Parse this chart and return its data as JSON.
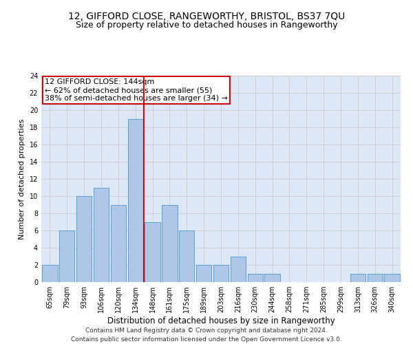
{
  "title1": "12, GIFFORD CLOSE, RANGEWORTHY, BRISTOL, BS37 7QU",
  "title2": "Size of property relative to detached houses in Rangeworthy",
  "xlabel": "Distribution of detached houses by size in Rangeworthy",
  "ylabel": "Number of detached properties",
  "categories": [
    "65sqm",
    "79sqm",
    "93sqm",
    "106sqm",
    "120sqm",
    "134sqm",
    "148sqm",
    "161sqm",
    "175sqm",
    "189sqm",
    "203sqm",
    "216sqm",
    "230sqm",
    "244sqm",
    "258sqm",
    "271sqm",
    "285sqm",
    "299sqm",
    "313sqm",
    "326sqm",
    "340sqm"
  ],
  "values": [
    2,
    6,
    10,
    11,
    9,
    19,
    7,
    9,
    6,
    2,
    2,
    3,
    1,
    1,
    0,
    0,
    0,
    0,
    1,
    1,
    1
  ],
  "bar_color": "#aec6e8",
  "bar_edge_color": "#5a9fd4",
  "vline_x": 5.5,
  "vline_color": "#cc0000",
  "annotation_line1": "12 GIFFORD CLOSE: 144sqm",
  "annotation_line2": "← 62% of detached houses are smaller (55)",
  "annotation_line3": "38% of semi-detached houses are larger (34) →",
  "box_edge_color": "#cc0000",
  "ylim": [
    0,
    24
  ],
  "yticks": [
    0,
    2,
    4,
    6,
    8,
    10,
    12,
    14,
    16,
    18,
    20,
    22,
    24
  ],
  "grid_color": "#cccccc",
  "bg_color": "#dce8f5",
  "footer1": "Contains HM Land Registry data © Crown copyright and database right 2024.",
  "footer2": "Contains public sector information licensed under the Open Government Licence v3.0.",
  "title1_fontsize": 10,
  "title2_fontsize": 9,
  "xlabel_fontsize": 8.5,
  "ylabel_fontsize": 8,
  "tick_fontsize": 7,
  "annotation_fontsize": 8,
  "footer_fontsize": 6.5
}
